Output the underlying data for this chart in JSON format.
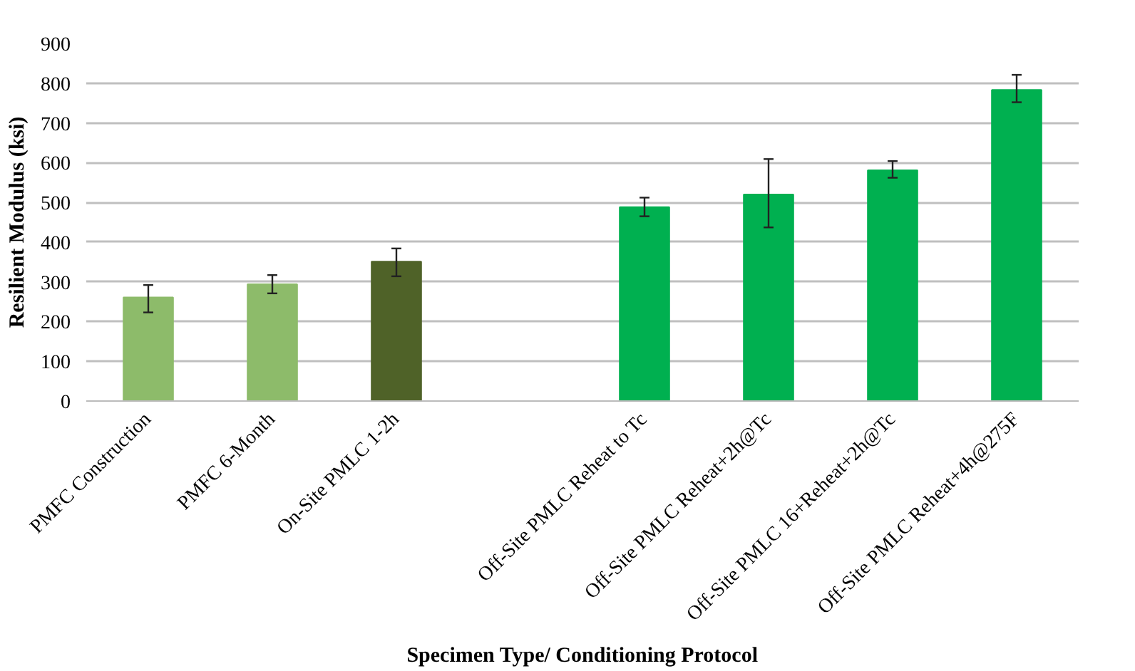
{
  "chart_data": {
    "type": "bar",
    "xlabel": "Specimen Type/ Conditioning Protocol",
    "ylabel": "Resilient Modulus (ksi)",
    "categories": [
      "PMFC Construction",
      "PMFC 6-Month",
      "On-Site PMLC 1-2h",
      null,
      "Off-Site PMLC Reheat to Tc",
      "Off-Site PMLC Reheat+2h@Tc",
      "Off-Site PMLC 16+Reheat+2h@Tc",
      "Off-Site PMLC Reheat+4h@275F"
    ],
    "values": [
      261,
      294,
      351,
      null,
      488,
      520,
      581,
      783
    ],
    "errors": [
      [
        223,
        292
      ],
      [
        271,
        317
      ],
      [
        314,
        384
      ],
      null,
      [
        465,
        512
      ],
      [
        437,
        609
      ],
      [
        562,
        604
      ],
      [
        752,
        821
      ]
    ],
    "colors": [
      "#8dbb6a",
      "#8dbb6a",
      "#4f6228",
      "#00b050",
      "#00b050",
      "#00b050",
      "#00b050",
      "#00b050"
    ],
    "ylim": [
      0,
      900
    ],
    "yticks": [
      0,
      100,
      200,
      300,
      400,
      500,
      600,
      700,
      800,
      900
    ],
    "grid": "y"
  }
}
